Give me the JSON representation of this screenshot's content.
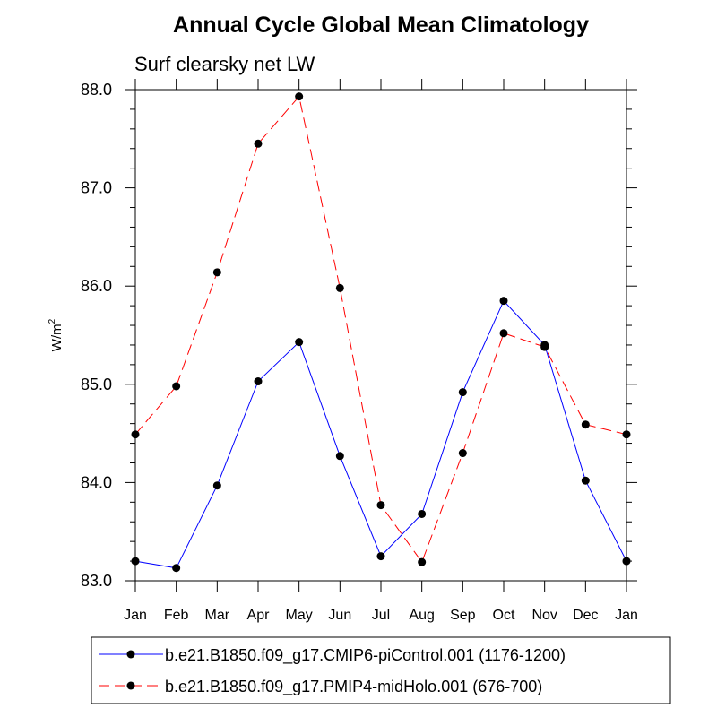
{
  "chart_data": {
    "type": "line",
    "title": "Annual Cycle Global Mean Climatology",
    "subtitle": "Surf clearsky net LW",
    "xlabel": "",
    "ylabel_base": "W/m",
    "ylabel_sup": "2",
    "categories": [
      "Jan",
      "Feb",
      "Mar",
      "Apr",
      "May",
      "Jun",
      "Jul",
      "Aug",
      "Sep",
      "Oct",
      "Nov",
      "Dec",
      "Jan"
    ],
    "ylim": [
      83.0,
      88.0
    ],
    "yticks": [
      "83.0",
      "84.0",
      "85.0",
      "86.0",
      "87.0",
      "88.0"
    ],
    "yminor_step": 0.2,
    "grid": false,
    "legend_position": "bottom",
    "series": [
      {
        "name": "b.e21.B1850.f09_g17.CMIP6-piControl.001 (1176-1200)",
        "color": "#0000ff",
        "dash": "solid",
        "values": [
          83.2,
          83.13,
          83.97,
          85.03,
          85.43,
          84.27,
          83.25,
          83.68,
          84.92,
          85.85,
          85.4,
          84.02,
          83.2
        ]
      },
      {
        "name": "b.e21.B1850.f09_g17.PMIP4-midHolo.001 (676-700)",
        "color": "#ff0000",
        "dash": "dashed",
        "values": [
          84.49,
          84.98,
          86.14,
          87.45,
          87.93,
          85.98,
          83.77,
          83.19,
          84.3,
          85.52,
          85.38,
          84.59,
          84.49
        ]
      }
    ]
  }
}
